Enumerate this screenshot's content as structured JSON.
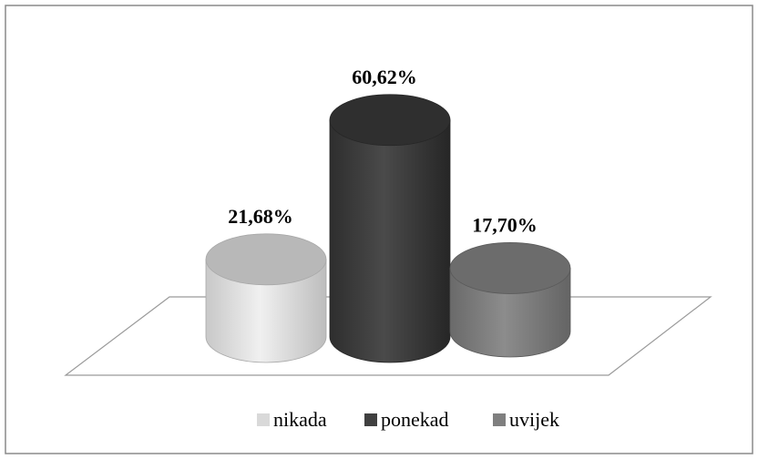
{
  "chart_data": {
    "type": "bar",
    "style": "3d-cylinder",
    "title": "",
    "xlabel": "",
    "ylabel": "",
    "ylim": [
      0,
      70
    ],
    "grid": false,
    "legend": "bottom",
    "categories": [
      "nikada",
      "ponekad",
      "uvijek"
    ],
    "values": [
      21.68,
      60.62,
      17.7
    ],
    "value_labels": [
      "21,68%",
      "60,62%",
      "17,70%"
    ],
    "colors": [
      "#d9d9d9",
      "#404040",
      "#7f7f7f"
    ]
  }
}
